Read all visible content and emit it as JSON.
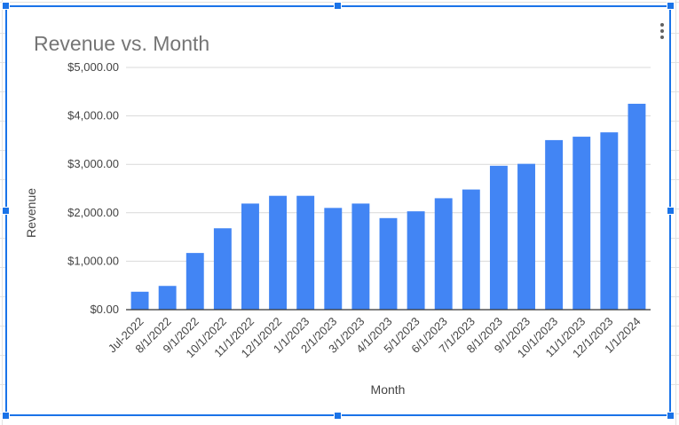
{
  "chart_data": {
    "type": "bar",
    "title": "Revenue vs. Month",
    "xlabel": "Month",
    "ylabel": "Revenue",
    "ylim": [
      0,
      5000
    ],
    "y_ticks": [
      "$0.00",
      "$1,000.00",
      "$2,000.00",
      "$3,000.00",
      "$4,000.00",
      "$5,000.00"
    ],
    "y_tick_values": [
      0,
      1000,
      2000,
      3000,
      4000,
      5000
    ],
    "grid": true,
    "legend": "none",
    "bar_color": "#4285f4",
    "categories": [
      "Jul-2022",
      "8/1/2022",
      "9/1/2022",
      "10/1/2022",
      "11/1/2022",
      "12/1/2022",
      "1/1/2023",
      "2/1/2023",
      "3/1/2023",
      "4/1/2023",
      "5/1/2023",
      "6/1/2023",
      "7/1/2023",
      "8/1/2023",
      "9/1/2023",
      "10/1/2023",
      "11/1/2023",
      "12/1/2023",
      "1/1/2024"
    ],
    "values": [
      370,
      490,
      1170,
      1680,
      2190,
      2350,
      2350,
      2100,
      2190,
      1890,
      2030,
      2300,
      2480,
      2970,
      3010,
      3500,
      3570,
      3660,
      4250
    ]
  },
  "ui": {
    "selection_color": "#1a73e8",
    "menu_icon": "more-vert-icon"
  }
}
